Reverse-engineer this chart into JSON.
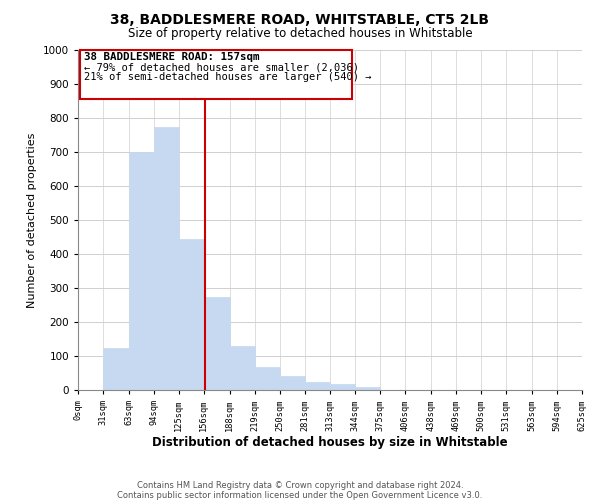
{
  "title": "38, BADDLESMERE ROAD, WHITSTABLE, CT5 2LB",
  "subtitle": "Size of property relative to detached houses in Whitstable",
  "xlabel": "Distribution of detached houses by size in Whitstable",
  "ylabel": "Number of detached properties",
  "footnote1": "Contains HM Land Registry data © Crown copyright and database right 2024.",
  "footnote2": "Contains public sector information licensed under the Open Government Licence v3.0.",
  "bar_edges": [
    0,
    31,
    63,
    94,
    125,
    156,
    188,
    219,
    250,
    281,
    313,
    344,
    375,
    406,
    438,
    469,
    500,
    531,
    563,
    594,
    625
  ],
  "bar_heights": [
    0,
    125,
    700,
    775,
    445,
    275,
    130,
    68,
    40,
    25,
    18,
    10,
    0,
    0,
    0,
    0,
    0,
    0,
    0,
    0
  ],
  "bar_color": "#c6d9f0",
  "bar_edge_color": "#c6d9f0",
  "reference_line_x": 157,
  "reference_line_color": "#cc0000",
  "box_text_line1": "38 BADDLESMERE ROAD: 157sqm",
  "box_text_line2": "← 79% of detached houses are smaller (2,036)",
  "box_text_line3": "21% of semi-detached houses are larger (540) →",
  "box_color": "white",
  "box_edge_color": "#cc0000",
  "ylim": [
    0,
    1000
  ],
  "xlim": [
    0,
    625
  ],
  "tick_labels": [
    "0sqm",
    "31sqm",
    "63sqm",
    "94sqm",
    "125sqm",
    "156sqm",
    "188sqm",
    "219sqm",
    "250sqm",
    "281sqm",
    "313sqm",
    "344sqm",
    "375sqm",
    "406sqm",
    "438sqm",
    "469sqm",
    "500sqm",
    "531sqm",
    "563sqm",
    "594sqm",
    "625sqm"
  ],
  "tick_positions": [
    0,
    31,
    63,
    94,
    125,
    156,
    188,
    219,
    250,
    281,
    313,
    344,
    375,
    406,
    438,
    469,
    500,
    531,
    563,
    594,
    625
  ],
  "background_color": "#ffffff",
  "grid_color": "#d0d0d0"
}
